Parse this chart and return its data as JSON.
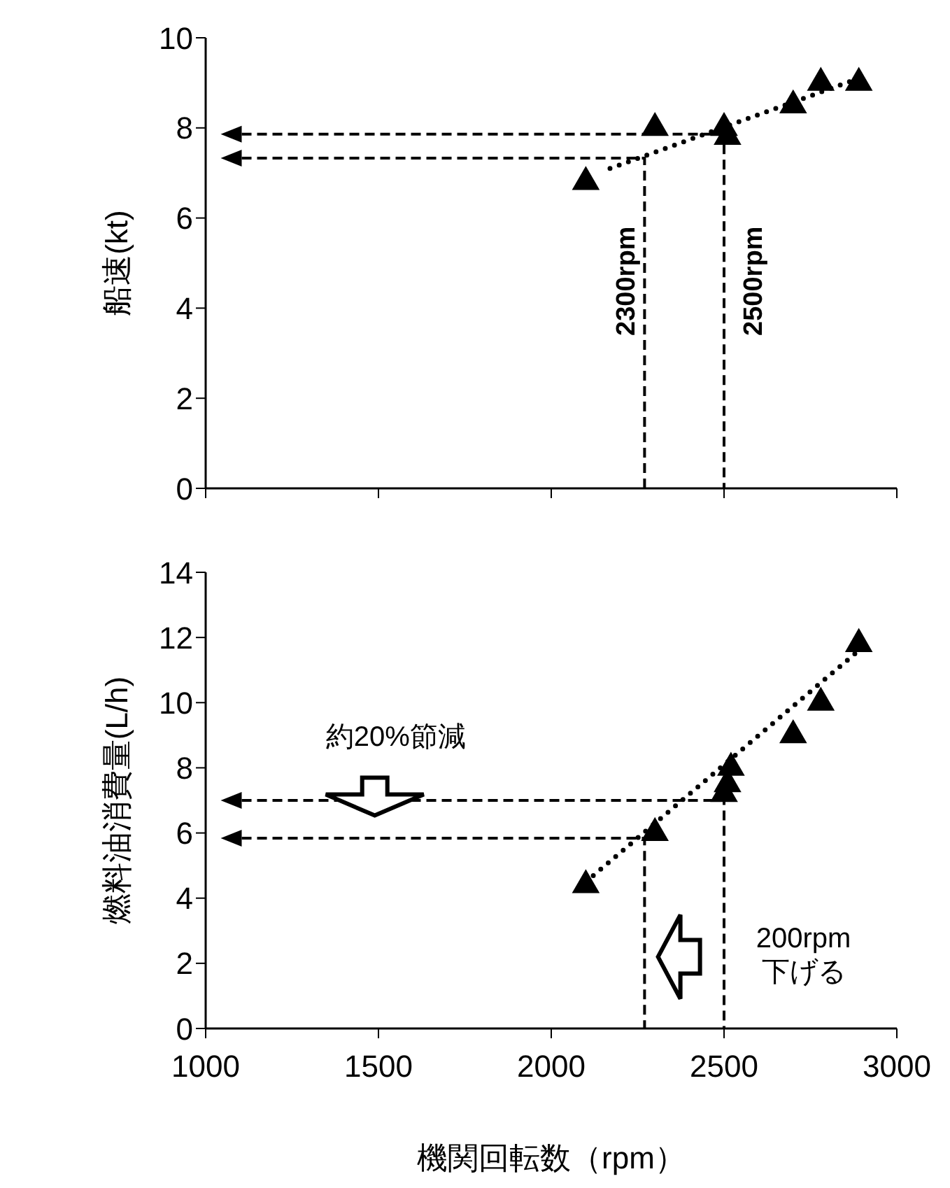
{
  "chart_data": [
    {
      "type": "scatter",
      "ylabel": "船速(kt)",
      "xlim": [
        1000,
        3000
      ],
      "xticks": [
        1000,
        1500,
        2000,
        2500,
        3000
      ],
      "ylim": [
        0,
        10
      ],
      "yticks": [
        0,
        2,
        4,
        6,
        8,
        10
      ],
      "tick_labels": "y",
      "grid": false,
      "legend": false,
      "marker": "triangle",
      "annotations": [
        "2300rpm",
        "2500rpm"
      ],
      "series": [
        {
          "color": "#000000",
          "x": [
            2100,
            2300,
            2500,
            2510,
            2700,
            2780,
            2890
          ],
          "values": [
            6.8,
            8.0,
            8.0,
            7.8,
            8.5,
            9.0,
            9.0
          ]
        },
        {
          "type": "line",
          "line_style": "dotted",
          "marker": "none",
          "color": "#000000",
          "x": [
            2170,
            2890
          ],
          "values": [
            7.1,
            9.1
          ]
        }
      ]
    },
    {
      "type": "scatter",
      "xlabel": "機関回転数（rpm）",
      "ylabel": "燃料油消費量(L/h)",
      "xlim": [
        1000,
        3000
      ],
      "xticks": [
        1000,
        1500,
        2000,
        2500,
        3000
      ],
      "ylim": [
        0,
        14
      ],
      "yticks": [
        0,
        2,
        4,
        6,
        8,
        10,
        12,
        14
      ],
      "grid": false,
      "legend": false,
      "marker": "triangle",
      "annotations": [
        "約20%節減",
        "200rpm\n下げる"
      ],
      "series": [
        {
          "color": "#000000",
          "x": [
            2100,
            2300,
            2500,
            2510,
            2520,
            2700,
            2780,
            2890
          ],
          "values": [
            4.4,
            6.0,
            7.2,
            7.5,
            8.0,
            9.0,
            10.0,
            11.8
          ]
        },
        {
          "type": "line",
          "line_style": "dotted",
          "marker": "none",
          "color": "#000000",
          "x": [
            2100,
            2890
          ],
          "values": [
            4.5,
            11.6
          ]
        }
      ]
    }
  ]
}
